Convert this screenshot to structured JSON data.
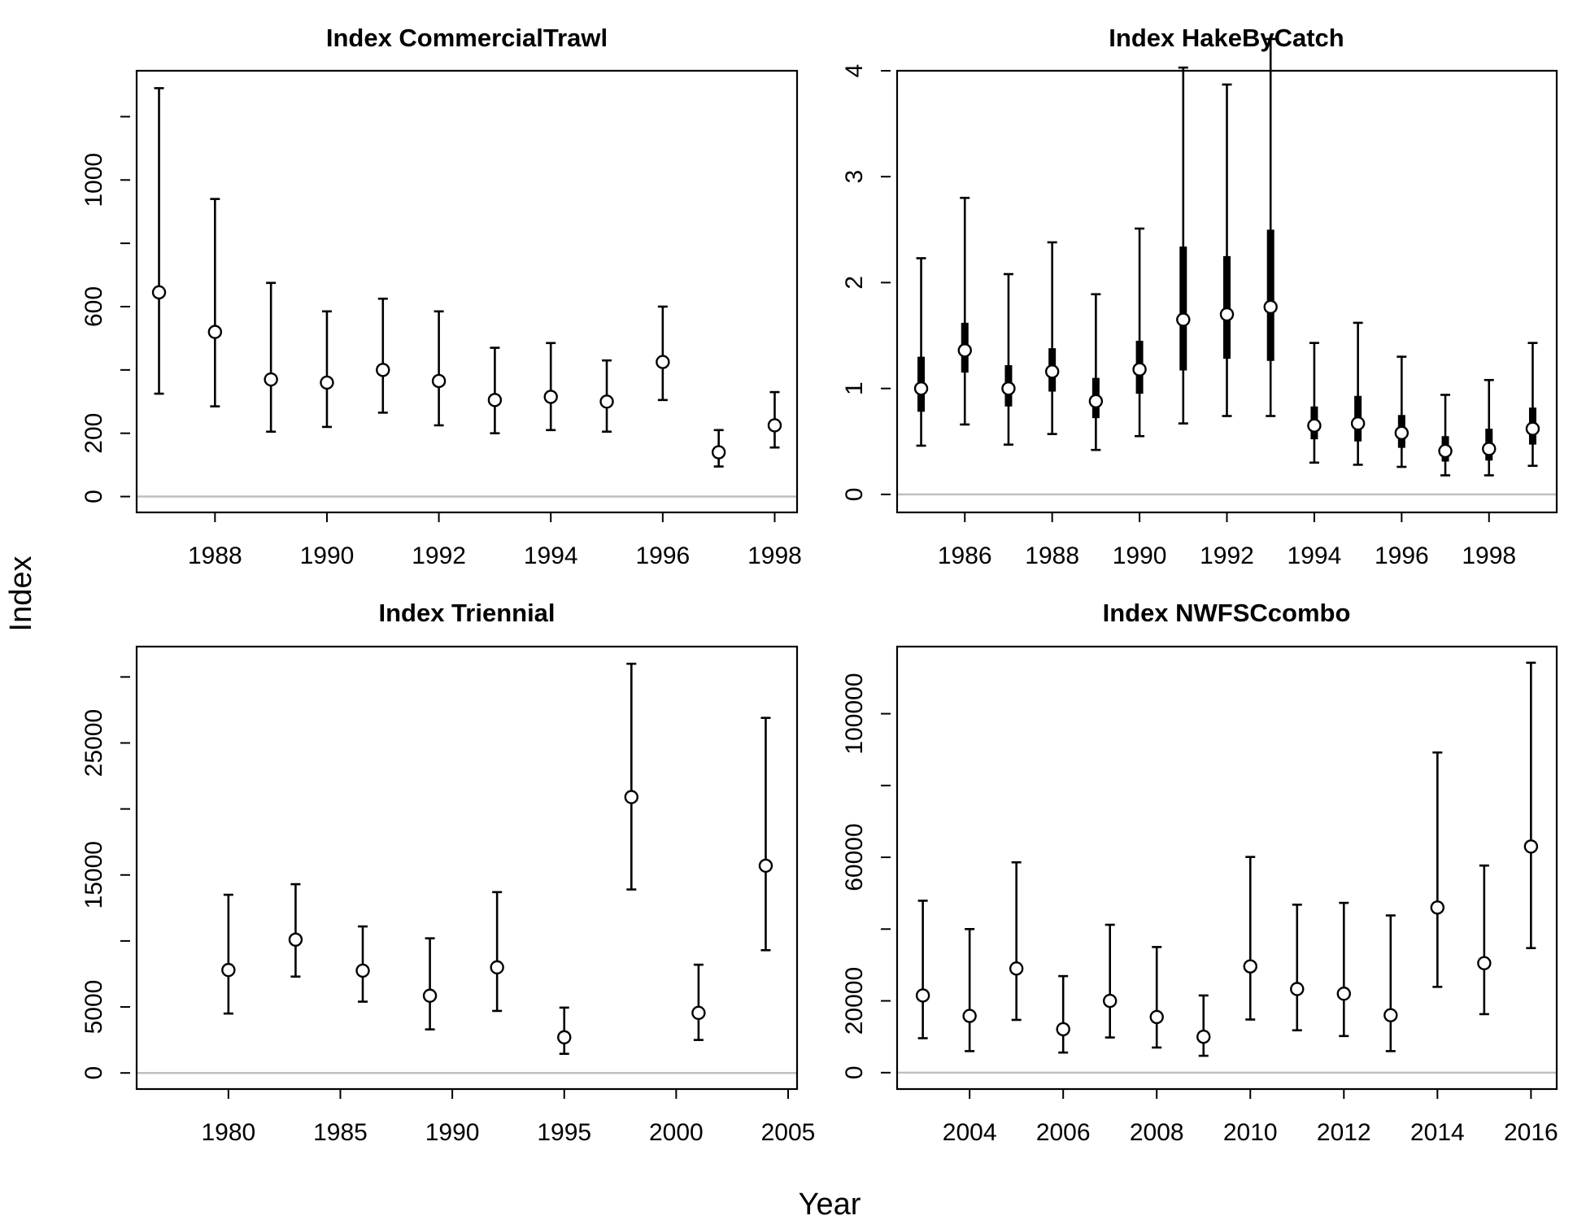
{
  "figure": {
    "xlabel": "Year",
    "ylabel": "Index",
    "colors": {
      "zero_line": "#bfbfbf",
      "ink": "#000000",
      "point_fill": "#ffffff"
    }
  },
  "chart_data": [
    {
      "type": "scatter",
      "title": "Index CommercialTrawl",
      "x": [
        1987,
        1988,
        1989,
        1990,
        1991,
        1992,
        1993,
        1994,
        1995,
        1996,
        1997,
        1998
      ],
      "y": [
        645,
        520,
        370,
        360,
        400,
        365,
        305,
        315,
        300,
        425,
        140,
        225
      ],
      "lower": [
        325,
        285,
        205,
        220,
        265,
        225,
        200,
        210,
        205,
        305,
        95,
        155
      ],
      "upper": [
        1290,
        940,
        675,
        585,
        625,
        585,
        470,
        485,
        430,
        600,
        210,
        330
      ],
      "xlim": [
        1986.6,
        1998.4
      ],
      "ylim": [
        -50,
        1345
      ],
      "xticks": [
        1988,
        1990,
        1992,
        1994,
        1996,
        1998
      ],
      "yticks": [
        0,
        200,
        600,
        1000
      ],
      "yticks_minor": [
        400,
        800,
        1200
      ]
    },
    {
      "type": "scatter",
      "title": "Index HakeByCatch",
      "x": [
        1985,
        1986,
        1987,
        1988,
        1989,
        1990,
        1991,
        1992,
        1993,
        1994,
        1995,
        1996,
        1997,
        1998,
        1999
      ],
      "y": [
        1.0,
        1.36,
        1.0,
        1.16,
        0.88,
        1.18,
        1.65,
        1.7,
        1.77,
        0.65,
        0.67,
        0.58,
        0.41,
        0.43,
        0.62
      ],
      "lower": [
        0.46,
        0.66,
        0.47,
        0.57,
        0.42,
        0.55,
        0.67,
        0.74,
        0.74,
        0.3,
        0.28,
        0.26,
        0.18,
        0.18,
        0.27
      ],
      "upper": [
        2.23,
        2.8,
        2.08,
        2.38,
        1.89,
        2.51,
        4.03,
        3.87,
        4.3,
        1.43,
        1.62,
        1.3,
        0.94,
        1.08,
        1.43
      ],
      "inner_lower": [
        0.78,
        1.15,
        0.83,
        0.97,
        0.72,
        0.95,
        1.17,
        1.28,
        1.26,
        0.52,
        0.5,
        0.44,
        0.31,
        0.32,
        0.47
      ],
      "inner_upper": [
        1.3,
        1.62,
        1.22,
        1.38,
        1.1,
        1.45,
        2.34,
        2.25,
        2.5,
        0.83,
        0.93,
        0.75,
        0.55,
        0.62,
        0.82
      ],
      "xlim": [
        1984.45,
        1999.55
      ],
      "ylim": [
        -0.17,
        4.0
      ],
      "xticks": [
        1986,
        1988,
        1990,
        1992,
        1994,
        1996,
        1998
      ],
      "yticks": [
        0,
        1,
        2,
        3,
        4
      ]
    },
    {
      "type": "scatter",
      "title": "Index Triennial",
      "x": [
        1980,
        1983,
        1986,
        1989,
        1992,
        1995,
        1998,
        2001,
        2004
      ],
      "y": [
        7800,
        10100,
        7750,
        5850,
        8000,
        2700,
        20900,
        4550,
        15700
      ],
      "lower": [
        4500,
        7300,
        5400,
        3300,
        4700,
        1450,
        13900,
        2500,
        9300
      ],
      "upper": [
        13500,
        14300,
        11100,
        10200,
        13700,
        4950,
        31000,
        8200,
        26900
      ],
      "xlim": [
        1975.9,
        2005.4
      ],
      "ylim": [
        -1220,
        32300
      ],
      "xticks": [
        1980,
        1985,
        1990,
        1995,
        2000,
        2005
      ],
      "yticks": [
        0,
        5000,
        15000,
        25000
      ],
      "yticks_minor": [
        10000,
        20000,
        30000
      ]
    },
    {
      "type": "scatter",
      "title": "Index NWFSCcombo",
      "x": [
        2003,
        2004,
        2005,
        2006,
        2007,
        2008,
        2009,
        2010,
        2011,
        2012,
        2013,
        2014,
        2015,
        2016
      ],
      "y": [
        21500,
        15800,
        29000,
        12100,
        20000,
        15500,
        10000,
        29600,
        23300,
        22000,
        16000,
        46000,
        30500,
        63000
      ],
      "lower": [
        9600,
        6000,
        14700,
        5600,
        9800,
        7000,
        4700,
        14800,
        11800,
        10200,
        6000,
        23900,
        16300,
        34700
      ],
      "upper": [
        47900,
        40000,
        58600,
        26900,
        41200,
        35000,
        21500,
        60100,
        46800,
        47300,
        43800,
        89200,
        57700,
        114200
      ],
      "xlim": [
        2002.45,
        2016.55
      ],
      "ylim": [
        -4570,
        118700
      ],
      "xticks": [
        2004,
        2006,
        2008,
        2010,
        2012,
        2014,
        2016
      ],
      "yticks": [
        0,
        20000,
        60000,
        100000
      ],
      "yticks_minor": [
        40000,
        80000
      ]
    }
  ]
}
